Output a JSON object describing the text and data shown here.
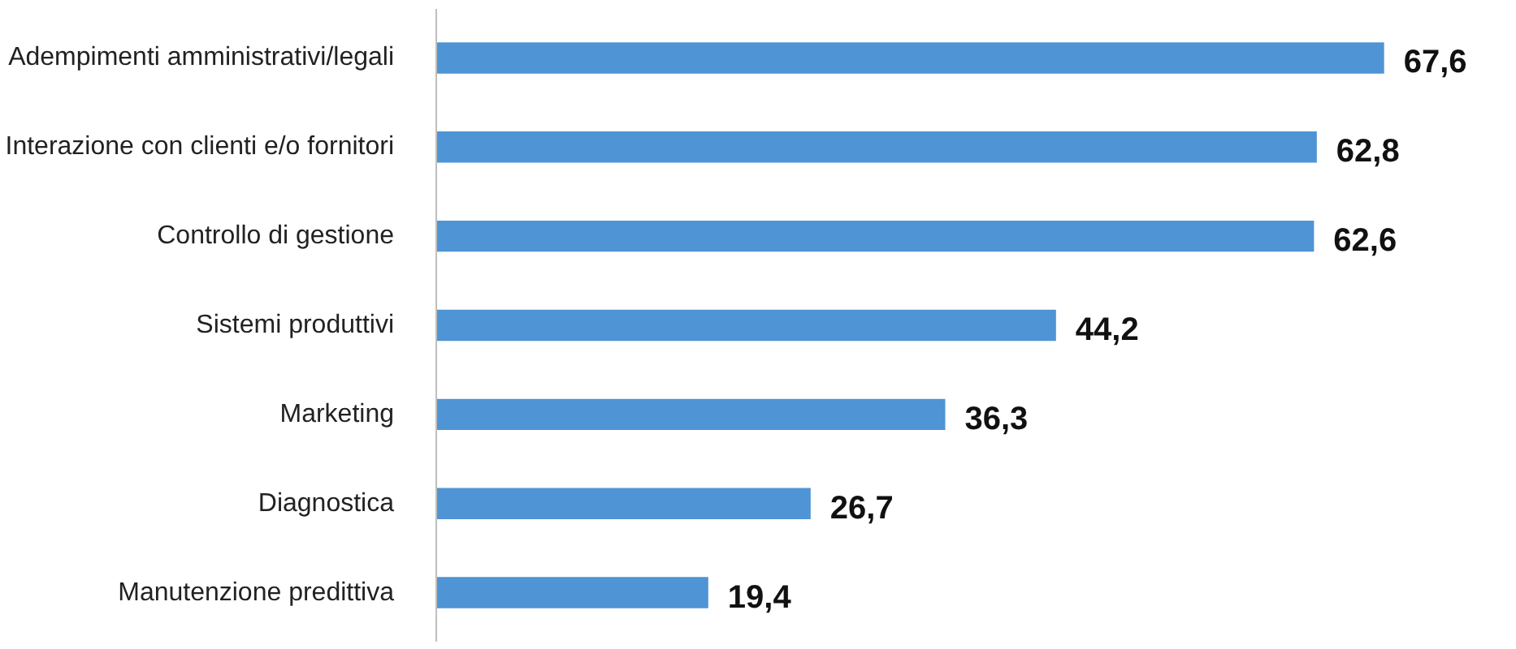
{
  "chart_data": {
    "type": "bar",
    "orientation": "horizontal",
    "categories": [
      "Adempimenti amministrativi/legali",
      "Interazione con clienti e/o fornitori",
      "Controllo di gestione",
      "Sistemi produttivi",
      "Marketing",
      "Diagnostica",
      "Manutenzione predittiva"
    ],
    "values": [
      67.6,
      62.8,
      62.6,
      44.2,
      36.3,
      26.7,
      19.4
    ],
    "value_labels": [
      "67,6",
      "62,8",
      "62,6",
      "44,2",
      "36,3",
      "26,7",
      "19,4"
    ],
    "color": "#4f94d4",
    "grid": false,
    "tick_labels": "y"
  }
}
